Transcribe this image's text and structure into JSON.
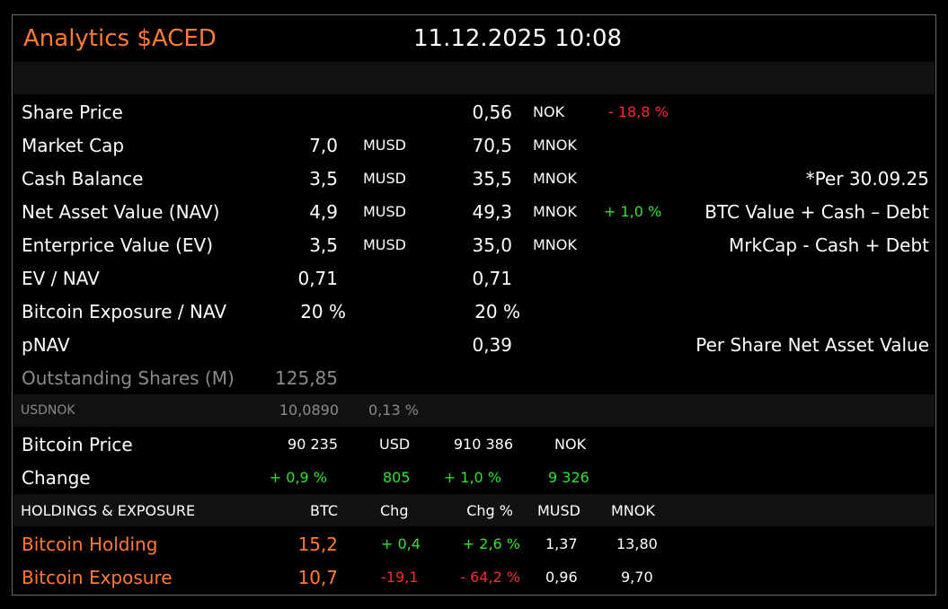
{
  "header": {
    "title": "Analytics $ACED",
    "datetime": "11.12.2025 10:08"
  },
  "metrics": {
    "share_price": {
      "label": "Share Price",
      "nok": "0,56",
      "unit_nok": "NOK",
      "change": "- 18,8 %"
    },
    "market_cap": {
      "label": "Market Cap",
      "usd": "7,0",
      "unit_usd": "MUSD",
      "nok": "70,5",
      "unit_nok": "MNOK"
    },
    "cash_balance": {
      "label": "Cash Balance",
      "usd": "3,5",
      "unit_usd": "MUSD",
      "nok": "35,5",
      "unit_nok": "MNOK",
      "note": "*Per 30.09.25"
    },
    "nav": {
      "label": "Net Asset Value (NAV)",
      "usd": "4,9",
      "unit_usd": "MUSD",
      "nok": "49,3",
      "unit_nok": "MNOK",
      "change": "+ 1,0 %",
      "note": "BTC Value + Cash – Debt"
    },
    "ev": {
      "label": "Enterprice Value (EV)",
      "usd": "3,5",
      "unit_usd": "MUSD",
      "nok": "35,0",
      "unit_nok": "MNOK",
      "note": "MrkCap - Cash + Debt"
    },
    "ev_nav": {
      "label": "EV / NAV",
      "usd": "0,71",
      "nok": "0,71"
    },
    "btc_exposure_nav": {
      "label": "Bitcoin Exposure / NAV",
      "usd": "20 %",
      "nok": "20 %"
    },
    "pnav": {
      "label": "pNAV",
      "nok": "0,39",
      "note": "Per Share Net Asset Value"
    },
    "outstanding": {
      "label": "Outstanding Shares (M)",
      "value": "125,85"
    }
  },
  "usdnok": {
    "label": "USDNOK",
    "value": "10,0890",
    "change": "0,13 %"
  },
  "bitcoin": {
    "price_label": "Bitcoin Price",
    "price_usd": "90 235",
    "unit_usd": "USD",
    "price_nok": "910 386",
    "unit_nok": "NOK",
    "change_label": "Change",
    "chg_usd_pct": "+ 0,9 %",
    "chg_usd": "805",
    "chg_nok_pct": "+ 1,0 %",
    "chg_nok": "9 326"
  },
  "holdings": {
    "headers": {
      "title": "HOLDINGS  &  EXPOSURE",
      "btc": "BTC",
      "chg": "Chg",
      "chg_pct": "Chg %",
      "musd": "MUSD",
      "mnok": "MNOK"
    },
    "rows": [
      {
        "label": "Bitcoin Holding",
        "btc": "15,2",
        "chg": "+ 0,4",
        "chg_pct": "+ 2,6 %",
        "musd": "1,37",
        "mnok": "13,80"
      },
      {
        "label": "Bitcoin Exposure",
        "btc": "10,7",
        "chg": "-19,1",
        "chg_pct": "- 64,2 %",
        "musd": "0,96",
        "mnok": "9,70"
      }
    ]
  },
  "colors": {
    "accent": "#ff7a33",
    "negative": "#ff2a2a",
    "positive": "#2ee32e",
    "band": "#111111",
    "border": "#6a6a6a"
  }
}
